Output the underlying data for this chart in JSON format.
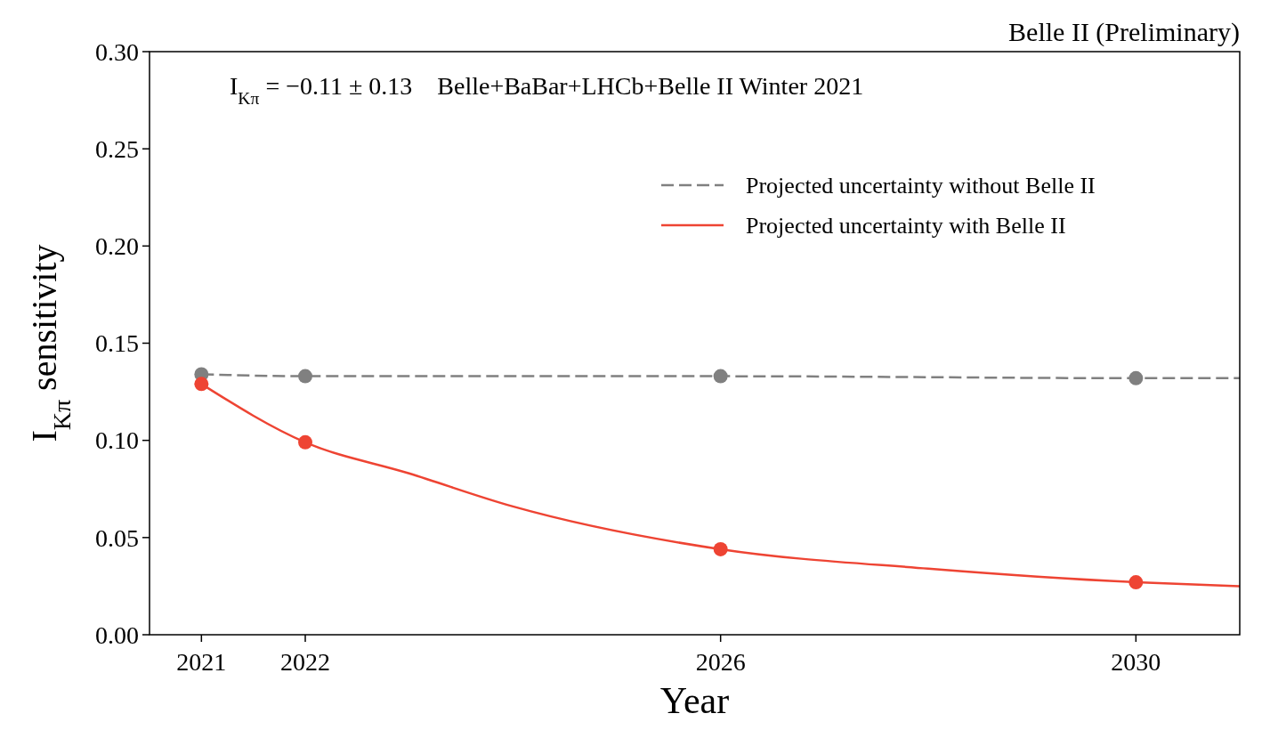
{
  "chart_data": {
    "type": "line",
    "xlabel": "Year",
    "ylabel": "I$_{Kπ}$ sensitivity",
    "xlim": [
      2020.5,
      2031
    ],
    "ylim": [
      0,
      0.3
    ],
    "xticks": [
      2021,
      2022,
      2026,
      2030
    ],
    "yticks": [
      {
        "value": 0,
        "label": "0.00"
      },
      {
        "value": 0.05,
        "label": "0.05"
      },
      {
        "value": 0.1,
        "label": "0.10"
      },
      {
        "value": 0.15,
        "label": "0.15"
      },
      {
        "value": 0.2,
        "label": "0.20"
      },
      {
        "value": 0.25,
        "label": "0.25"
      },
      {
        "value": 0.3,
        "label": "0.30"
      }
    ],
    "legend": "top right",
    "grid": false,
    "series": [
      {
        "name": "Projected uncertainty without Belle II",
        "color": "#808080",
        "line_style": "dashed",
        "marker": "none",
        "x": [
          2021,
          2022,
          2026,
          2030,
          2031
        ],
        "values": [
          0.134,
          0.133,
          0.133,
          0.132,
          0.132
        ]
      },
      {
        "name": "Projected uncertainty with Belle II",
        "color": "#ee4433",
        "line_style": "solid",
        "marker": "none",
        "x": [
          2021,
          2022,
          2023,
          2024,
          2026,
          2028,
          2030,
          2031
        ],
        "values": [
          0.129,
          0.099,
          0.083,
          0.066,
          0.044,
          0.034,
          0.027,
          0.025
        ]
      },
      {
        "type": "scatter",
        "color": "#808080",
        "marker": "circle",
        "x": [
          2021,
          2022,
          2026,
          2030
        ],
        "values": [
          0.134,
          0.133,
          0.133,
          0.132
        ]
      },
      {
        "type": "scatter",
        "color": "#ee4433",
        "marker": "circle",
        "x": [
          2021,
          2022,
          2026,
          2030
        ],
        "values": [
          0.129,
          0.099,
          0.044,
          0.027
        ]
      }
    ],
    "annotations": [
      "I$_{Kπ}$ = −0.11 ± 0.13    Belle+BaBar+LHCb+Belle II Winter 2021",
      "Belle II (Preliminary)"
    ]
  }
}
